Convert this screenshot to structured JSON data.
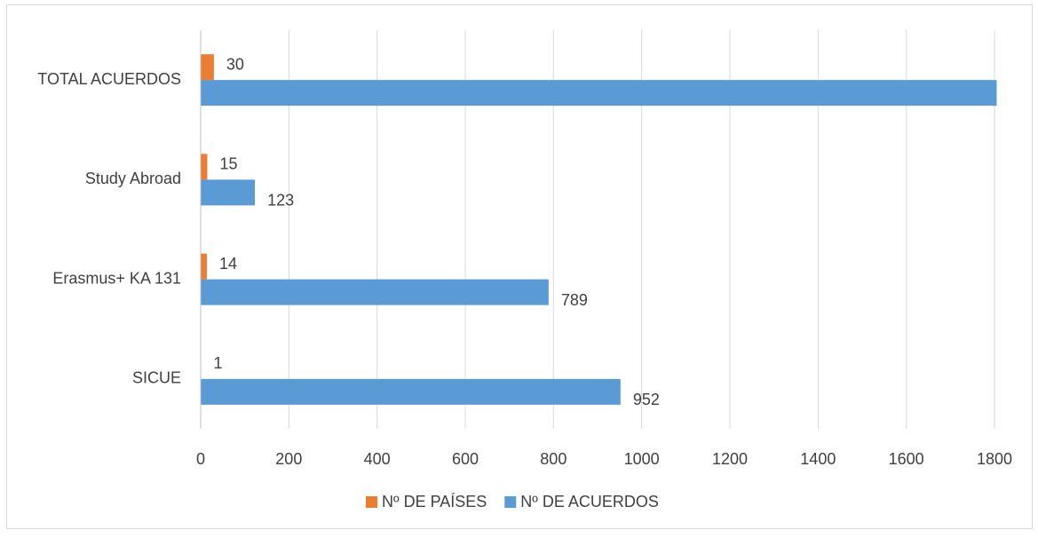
{
  "chart_data": {
    "type": "bar",
    "orientation": "horizontal",
    "categories": [
      "SICUE",
      "Erasmus+ KA 131",
      "Study Abroad",
      "TOTAL ACUERDOS"
    ],
    "series": [
      {
        "name": "Nº DE PAÍSES",
        "color": "#ed7d31",
        "values": [
          1,
          14,
          15,
          30
        ]
      },
      {
        "name": "Nº DE ACUERDOS",
        "color": "#5b9bd5",
        "values": [
          952,
          789,
          123,
          1805
        ],
        "value_labels": [
          "952",
          "789",
          "123",
          null
        ]
      }
    ],
    "xlim": [
      0,
      1800
    ],
    "xticks": [
      0,
      200,
      400,
      600,
      800,
      1000,
      1200,
      1400,
      1600,
      1800
    ],
    "grid": true,
    "legend": "bottom"
  }
}
